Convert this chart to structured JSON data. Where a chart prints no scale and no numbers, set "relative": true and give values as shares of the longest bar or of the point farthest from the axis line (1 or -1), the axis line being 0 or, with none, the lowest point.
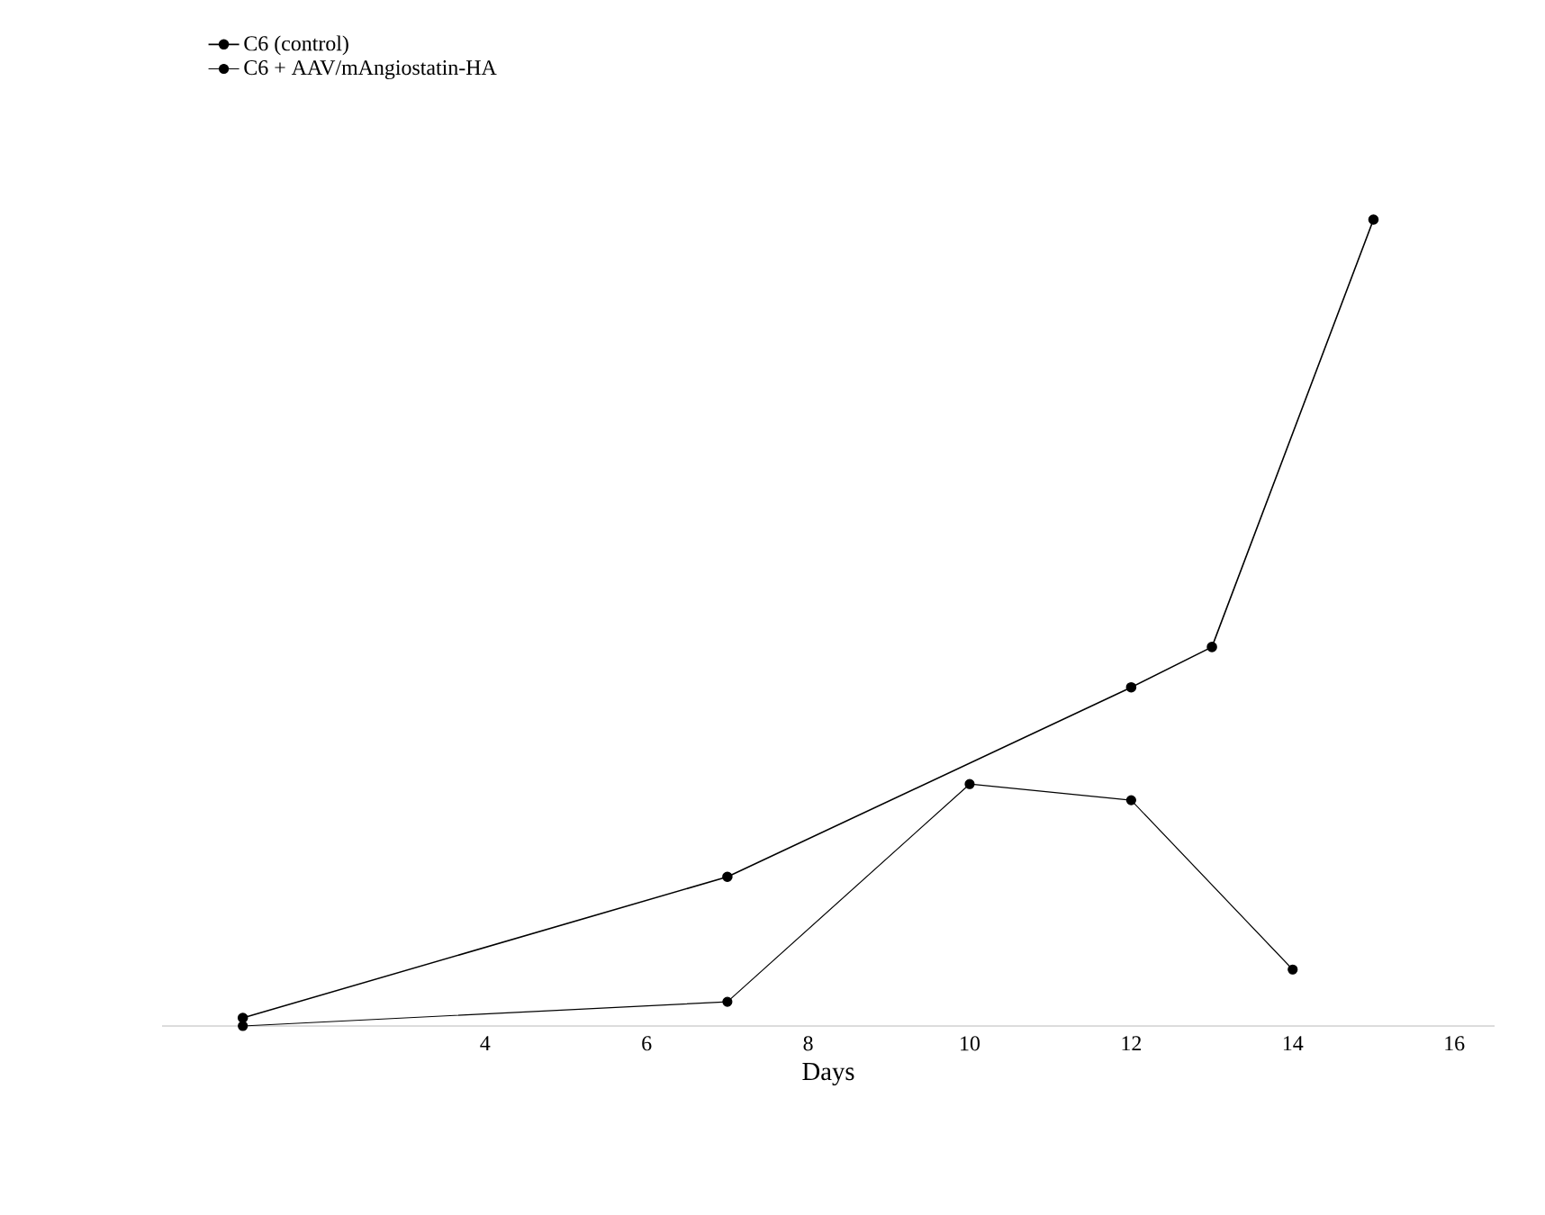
{
  "chart_data": {
    "type": "line",
    "xlabel": "Days",
    "relative": true,
    "series": [
      {
        "name": "C6 (control)",
        "color": "#000000",
        "x": [
          1,
          7,
          12,
          13,
          15
        ],
        "values": [
          0.01,
          0.185,
          0.42,
          0.47,
          1
        ]
      },
      {
        "name": "C6 + AAV/mAngiostatin-HA",
        "color": "#000000",
        "x": [
          1,
          7,
          10,
          12,
          14
        ],
        "values": [
          0,
          0.03,
          0.3,
          0.28,
          0.07
        ]
      }
    ],
    "xlim": [
      0,
      16.5
    ],
    "xticks": [
      4,
      6,
      8,
      10,
      12,
      14,
      16
    ],
    "legend": "top left",
    "marker": "circle",
    "line_style": "solid",
    "grid": false
  }
}
